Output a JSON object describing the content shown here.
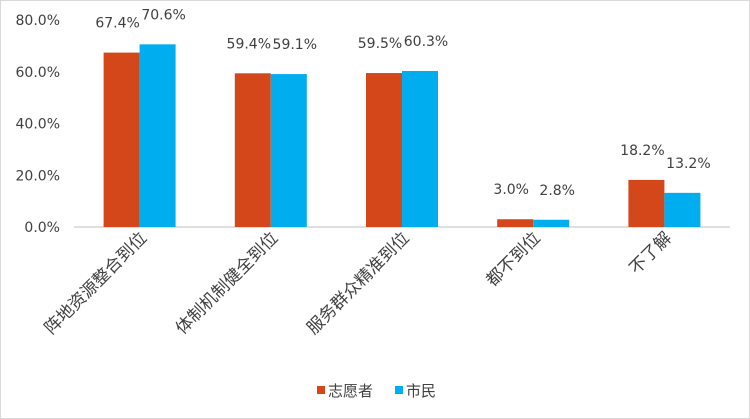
{
  "chart_data": {
    "type": "bar",
    "categories": [
      "阵地资源整合到位",
      "体制机制健全到位",
      "服务群众精准到位",
      "都不到位",
      "不了解"
    ],
    "series": [
      {
        "name": "志愿者",
        "values": [
          67.4,
          59.4,
          59.5,
          3.0,
          18.2
        ],
        "color": "#d4471a"
      },
      {
        "name": "市民",
        "values": [
          70.6,
          59.1,
          60.3,
          2.8,
          13.2
        ],
        "color": "#00aeef"
      }
    ],
    "data_labels": [
      [
        "67.4%",
        "59.4%",
        "59.5%",
        "3.0%",
        "18.2%"
      ],
      [
        "70.6%",
        "59.1%",
        "60.3%",
        "2.8%",
        "13.2%"
      ]
    ],
    "yticks": [
      "0.0%",
      "20.0%",
      "40.0%",
      "60.0%",
      "80.0%"
    ],
    "ylim": [
      0,
      80
    ],
    "grid": false,
    "legend_position": "bottom"
  }
}
